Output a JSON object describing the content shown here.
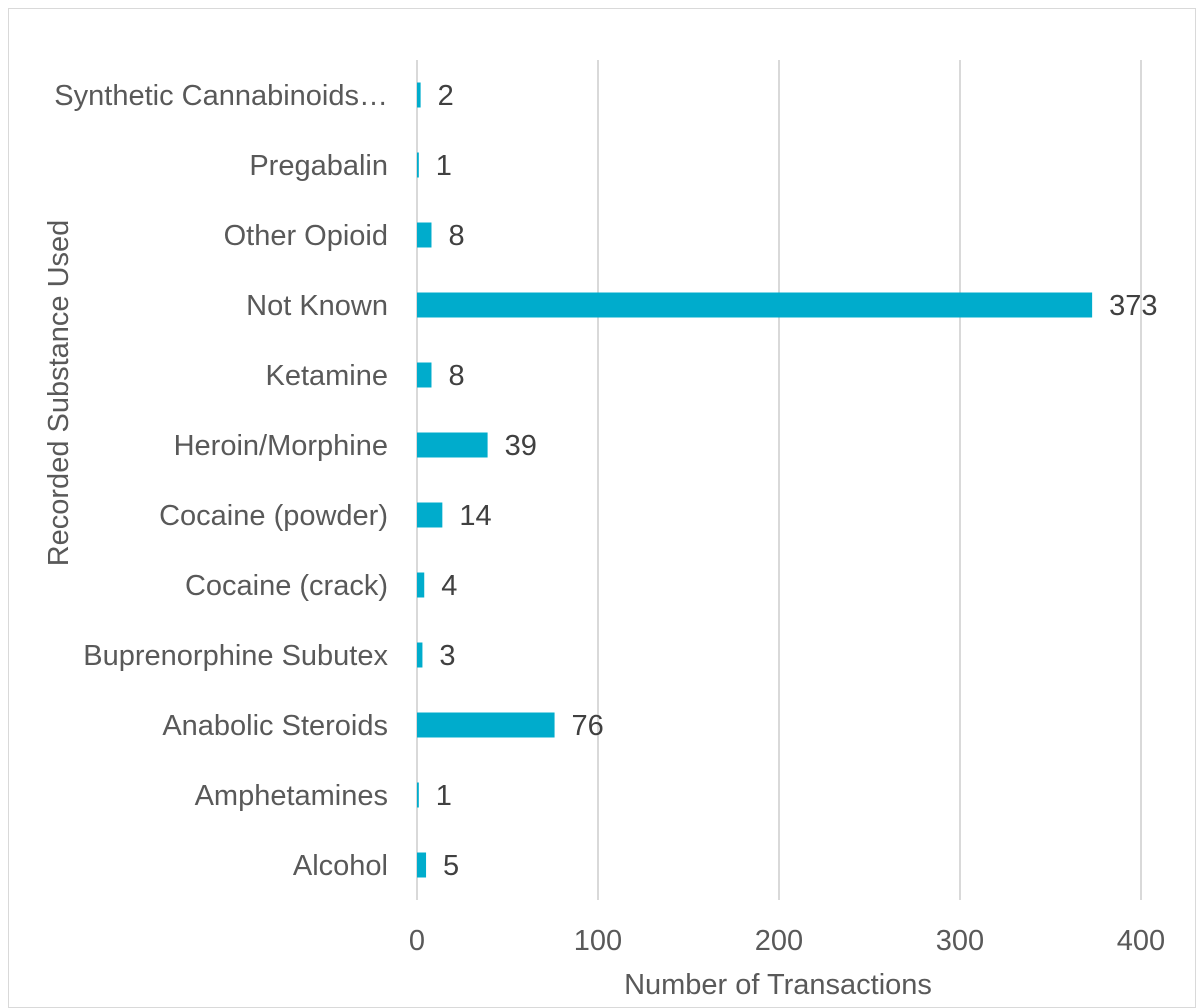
{
  "chart_data": {
    "type": "bar",
    "orientation": "horizontal",
    "categories": [
      "Alcohol",
      "Amphetamines",
      "Anabolic Steroids",
      "Buprenorphine Subutex",
      "Cocaine (crack)",
      "Cocaine (powder)",
      "Heroin/Morphine",
      "Ketamine",
      "Not Known",
      "Other Opioid",
      "Pregabalin",
      "Synthetic Cannabinoids…"
    ],
    "values": [
      5,
      1,
      76,
      3,
      4,
      14,
      39,
      8,
      373,
      8,
      1,
      2
    ],
    "xlabel": "Number of Transactions",
    "ylabel": "Recorded Substance Used",
    "xlim": [
      0,
      400
    ],
    "xticks": [
      "0",
      "100",
      "200",
      "300",
      "400"
    ],
    "grid": "vertical",
    "data_labels": true,
    "bar_color": "#00ACCC"
  }
}
